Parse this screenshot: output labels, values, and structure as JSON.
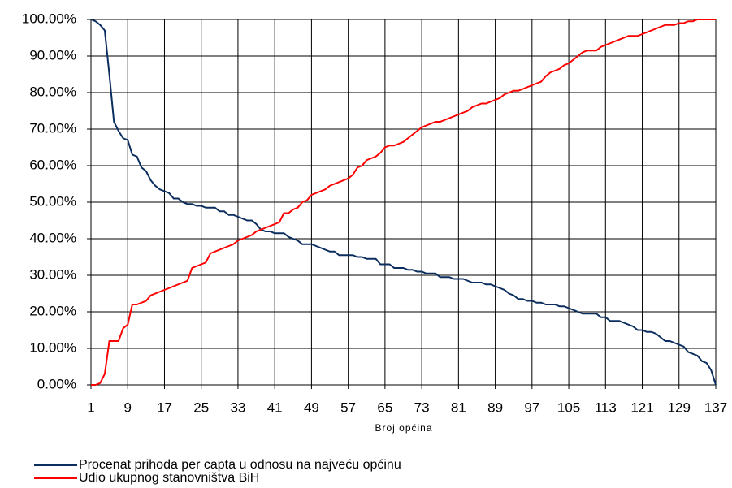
{
  "chart_data": {
    "type": "line",
    "xlabel": "Broj općina",
    "x": [
      1,
      2,
      3,
      4,
      5,
      6,
      7,
      8,
      9,
      10,
      11,
      12,
      13,
      14,
      15,
      16,
      17,
      18,
      19,
      20,
      21,
      22,
      23,
      24,
      25,
      26,
      27,
      28,
      29,
      30,
      31,
      32,
      33,
      34,
      35,
      36,
      37,
      38,
      39,
      40,
      41,
      42,
      43,
      44,
      45,
      46,
      47,
      48,
      49,
      50,
      51,
      52,
      53,
      54,
      55,
      56,
      57,
      58,
      59,
      60,
      61,
      62,
      63,
      64,
      65,
      66,
      67,
      68,
      69,
      70,
      71,
      72,
      73,
      74,
      75,
      76,
      77,
      78,
      79,
      80,
      81,
      82,
      83,
      84,
      85,
      86,
      87,
      88,
      89,
      90,
      91,
      92,
      93,
      94,
      95,
      96,
      97,
      98,
      99,
      100,
      101,
      102,
      103,
      104,
      105,
      106,
      107,
      108,
      109,
      110,
      111,
      112,
      113,
      114,
      115,
      116,
      117,
      118,
      119,
      120,
      121,
      122,
      123,
      124,
      125,
      126,
      127,
      128,
      129,
      130,
      131,
      132,
      133,
      134,
      135,
      136,
      137
    ],
    "series": [
      {
        "name": "Procenat prihoda per capta u odnosu na najveću općinu",
        "color": "#0b2e5e",
        "values": [
          100,
          99.5,
          98.5,
          97,
          85,
          72,
          69.5,
          67.5,
          67,
          63,
          62.5,
          59.5,
          58.5,
          56,
          54.5,
          53.5,
          53,
          52.5,
          51,
          51,
          50,
          49.5,
          49.5,
          49,
          49,
          48.5,
          48.5,
          48.5,
          47.5,
          47.5,
          46.5,
          46.5,
          46,
          45.5,
          45,
          45,
          44,
          42.5,
          42,
          42,
          41.5,
          41.5,
          41.5,
          40.5,
          40,
          39.5,
          38.5,
          38.5,
          38.5,
          38,
          37.5,
          37,
          36.5,
          36.5,
          35.5,
          35.5,
          35.5,
          35.5,
          35,
          35,
          34.5,
          34.5,
          34.5,
          33,
          33,
          33,
          32,
          32,
          32,
          31.5,
          31.5,
          31,
          31,
          30.5,
          30.5,
          30.5,
          29.5,
          29.5,
          29.5,
          29,
          29,
          29,
          28.5,
          28,
          28,
          28,
          27.5,
          27.5,
          27,
          26.5,
          26,
          25,
          24.5,
          23.5,
          23.5,
          23,
          23,
          22.5,
          22.5,
          22,
          22,
          22,
          21.5,
          21.5,
          21,
          20.5,
          20,
          19.5,
          19.5,
          19.5,
          19.5,
          18.5,
          18.5,
          17.5,
          17.5,
          17.5,
          17,
          16.5,
          16,
          15,
          15,
          14.5,
          14.5,
          14,
          13,
          12,
          12,
          11.5,
          11,
          10.5,
          9,
          8.5,
          8,
          6.5,
          6,
          4,
          0
        ]
      },
      {
        "name": "Udio ukupnog stanovništva BiH",
        "color": "#ff0000",
        "values": [
          0,
          0,
          0.5,
          3,
          12,
          12,
          12,
          15.5,
          16.5,
          22,
          22,
          22.5,
          23,
          24.5,
          25,
          25.5,
          26,
          26.5,
          27,
          27.5,
          28,
          28.5,
          32,
          32.5,
          33,
          33.5,
          36,
          36.5,
          37,
          37.5,
          38,
          38.5,
          39.5,
          40,
          40.5,
          41,
          42,
          42.5,
          43,
          43.5,
          44,
          44.5,
          47,
          47,
          48,
          48.5,
          50,
          50.5,
          52,
          52.5,
          53,
          53.5,
          54.5,
          55,
          55.5,
          56,
          56.5,
          57.5,
          59.5,
          60,
          61.5,
          62,
          62.5,
          63.5,
          65,
          65.5,
          65.5,
          66,
          66.5,
          67.5,
          68.5,
          69.5,
          70.5,
          71,
          71.5,
          72,
          72,
          72.5,
          73,
          73.5,
          74,
          74.5,
          75,
          76,
          76.5,
          77,
          77,
          77.5,
          78,
          78.5,
          79.5,
          80,
          80.5,
          80.5,
          81,
          81.5,
          82,
          82.5,
          83,
          84.5,
          85.5,
          86,
          86.5,
          87.5,
          88,
          89,
          90,
          91,
          91.5,
          91.5,
          91.5,
          92.5,
          93,
          93.5,
          94,
          94.5,
          95,
          95.5,
          95.5,
          95.5,
          96,
          96.5,
          97,
          97.5,
          98,
          98.5,
          98.5,
          98.5,
          99,
          99,
          99.5,
          99.5,
          100,
          100,
          100,
          100,
          100
        ]
      }
    ],
    "xlim": [
      1,
      137
    ],
    "xticks": [
      1,
      9,
      17,
      25,
      33,
      41,
      49,
      57,
      65,
      73,
      81,
      89,
      97,
      105,
      113,
      121,
      129,
      137
    ],
    "ylim": [
      0,
      100
    ],
    "yticks": [
      {
        "value": 0,
        "label": "0.00%"
      },
      {
        "value": 10,
        "label": "10.00%"
      },
      {
        "value": 20,
        "label": "20.00%"
      },
      {
        "value": 30,
        "label": "30.00%"
      },
      {
        "value": 40,
        "label": "40.00%"
      },
      {
        "value": 50,
        "label": "50.00%"
      },
      {
        "value": 60,
        "label": "60.00%"
      },
      {
        "value": 70,
        "label": "70.00%"
      },
      {
        "value": 80,
        "label": "80.00%"
      },
      {
        "value": 90,
        "label": "90.00%"
      },
      {
        "value": 100,
        "label": "100.00%"
      }
    ],
    "grid": true,
    "legend": "bottom"
  }
}
